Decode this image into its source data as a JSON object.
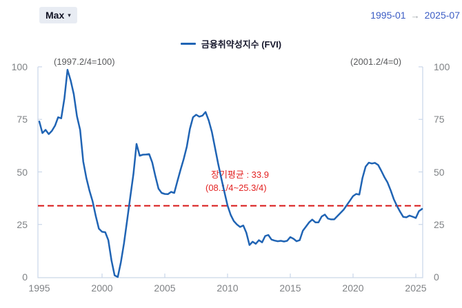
{
  "toolbar": {
    "range_button": "Max",
    "caret": "▾"
  },
  "date_range": {
    "start": "1995-01",
    "arrow": "→",
    "end": "2025-07"
  },
  "legend": {
    "label": "금융취약성지수 (FVI)"
  },
  "annotations": {
    "left": "(1997.2/4=100)",
    "right": "(2001.2/4=0)",
    "mean_line_1": "장기평균 : 33.9",
    "mean_line_2": "(08.1/4~25.3/4)"
  },
  "colors": {
    "line": "#2064b4",
    "mean_line": "#d81414",
    "mean_text": "#e32222",
    "axis": "#c9d6e8",
    "axis_label": "#7f8285",
    "annotation": "#58595b",
    "date_link": "#3b5cc4",
    "button_bg": "#e8ecf3"
  },
  "chart_data": {
    "type": "line",
    "title": "",
    "xlabel": "",
    "ylabel": "",
    "grid": false,
    "legend_position": "top",
    "xlim": [
      1995,
      2025.6
    ],
    "ylim": [
      0,
      100
    ],
    "x_ticks": [
      1995,
      2000,
      2005,
      2010,
      2015,
      2020,
      2025
    ],
    "y_ticks": [
      0,
      25,
      50,
      75,
      100
    ],
    "mean_line": {
      "value": 33.9,
      "label": "장기평균 : 33.9",
      "period": "(08.1/4~25.3/4)"
    },
    "series": [
      {
        "name": "금융취약성지수 (FVI)",
        "x_start": 1995.0,
        "x_step": 0.25,
        "values": [
          74,
          68.5,
          70,
          68,
          69.5,
          72,
          76,
          75.5,
          85,
          98.6,
          93.5,
          87,
          76.5,
          70,
          55,
          47,
          41,
          36,
          29,
          23,
          21.5,
          21.3,
          17.5,
          8,
          0.8,
          0,
          7,
          16,
          27,
          38,
          49,
          63.3,
          57.7,
          58.2,
          58.3,
          58.5,
          54.5,
          48,
          42,
          40,
          39.5,
          39.4,
          40.5,
          40,
          45.5,
          51,
          56,
          62,
          70.5,
          76,
          77.2,
          76.3,
          76.8,
          78.5,
          74.5,
          69,
          61.5,
          54,
          47,
          40.5,
          34,
          29.5,
          26.6,
          25,
          23.8,
          24.5,
          21,
          15.2,
          16.8,
          15.8,
          17.5,
          16.5,
          19.5,
          20,
          17.8,
          17.3,
          17,
          17.2,
          16.9,
          17.2,
          19,
          18.2,
          17,
          17.5,
          22,
          24,
          26,
          27.3,
          26,
          26,
          28.8,
          29.7,
          27.8,
          27.4,
          27.4,
          29,
          30.5,
          32,
          34.2,
          36.3,
          38.5,
          39.5,
          39.2,
          47,
          52.5,
          54.4,
          54,
          54.3,
          53.3,
          50.5,
          47.5,
          45,
          41.2,
          37,
          33.8,
          31,
          28.6,
          28.4,
          29.2,
          28.7,
          28.1,
          31.3,
          32.4
        ]
      }
    ]
  }
}
